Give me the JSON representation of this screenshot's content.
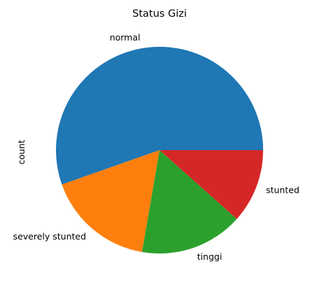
{
  "chart_data": {
    "type": "pie",
    "title": "Status Gizi",
    "ylabel": "count",
    "start_angle_deg": 0,
    "direction": "counterclockwise",
    "slices": [
      {
        "label": "normal",
        "value": 55.4,
        "color": "#1f77b4"
      },
      {
        "label": "severely stunted",
        "value": 16.9,
        "color": "#ff7f0e"
      },
      {
        "label": "tinggi",
        "value": 16.1,
        "color": "#2ca02c"
      },
      {
        "label": "stunted",
        "value": 11.6,
        "color": "#d62728"
      }
    ]
  }
}
